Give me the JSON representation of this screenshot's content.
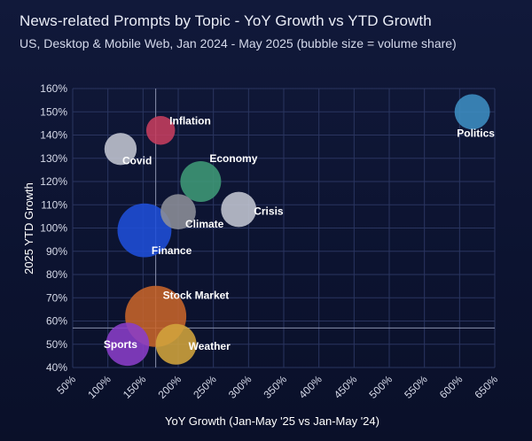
{
  "chart_data": {
    "type": "scatter",
    "title": "News-related Prompts by Topic - YoY Growth vs YTD Growth",
    "subtitle": "US, Desktop & Mobile Web, Jan 2024 - May 2025 (bubble size = volume share)",
    "xlabel": "YoY Growth (Jan-May '25 vs Jan-May '24)",
    "ylabel": "2025 YTD Growth",
    "xlim": [
      50,
      650
    ],
    "ylim": [
      40,
      160
    ],
    "x_ticks": [
      "50%",
      "100%",
      "150%",
      "200%",
      "250%",
      "300%",
      "350%",
      "400%",
      "450%",
      "500%",
      "550%",
      "600%",
      "650%"
    ],
    "y_ticks": [
      "40%",
      "50%",
      "60%",
      "70%",
      "80%",
      "90%",
      "100%",
      "110%",
      "120%",
      "130%",
      "140%",
      "150%",
      "160%"
    ],
    "reference_lines": {
      "x": 168,
      "y": 57
    },
    "points": [
      {
        "name": "Politics",
        "x": 618,
        "y": 150,
        "size": 3,
        "color": "#3d8ec3"
      },
      {
        "name": "Inflation",
        "x": 175,
        "y": 142,
        "size": 2,
        "color": "#c63d5e"
      },
      {
        "name": "Covid",
        "x": 118,
        "y": 134,
        "size": 2.5,
        "color": "#c3c6d2"
      },
      {
        "name": "Economy",
        "x": 232,
        "y": 120,
        "size": 4,
        "color": "#3f9a76"
      },
      {
        "name": "Crisis",
        "x": 286,
        "y": 108,
        "size": 3,
        "color": "#c3c6d2"
      },
      {
        "name": "Climate",
        "x": 200,
        "y": 107,
        "size": 3,
        "color": "#8d8f99"
      },
      {
        "name": "Finance",
        "x": 152,
        "y": 99,
        "size": 7,
        "color": "#1f4fd8"
      },
      {
        "name": "Stock Market",
        "x": 168,
        "y": 62,
        "size": 9,
        "color": "#c7642a"
      },
      {
        "name": "Sports",
        "x": 128,
        "y": 50,
        "size": 4.5,
        "color": "#8a3ec8"
      },
      {
        "name": "Weather",
        "x": 197,
        "y": 50,
        "size": 4,
        "color": "#d2a43c"
      }
    ]
  }
}
